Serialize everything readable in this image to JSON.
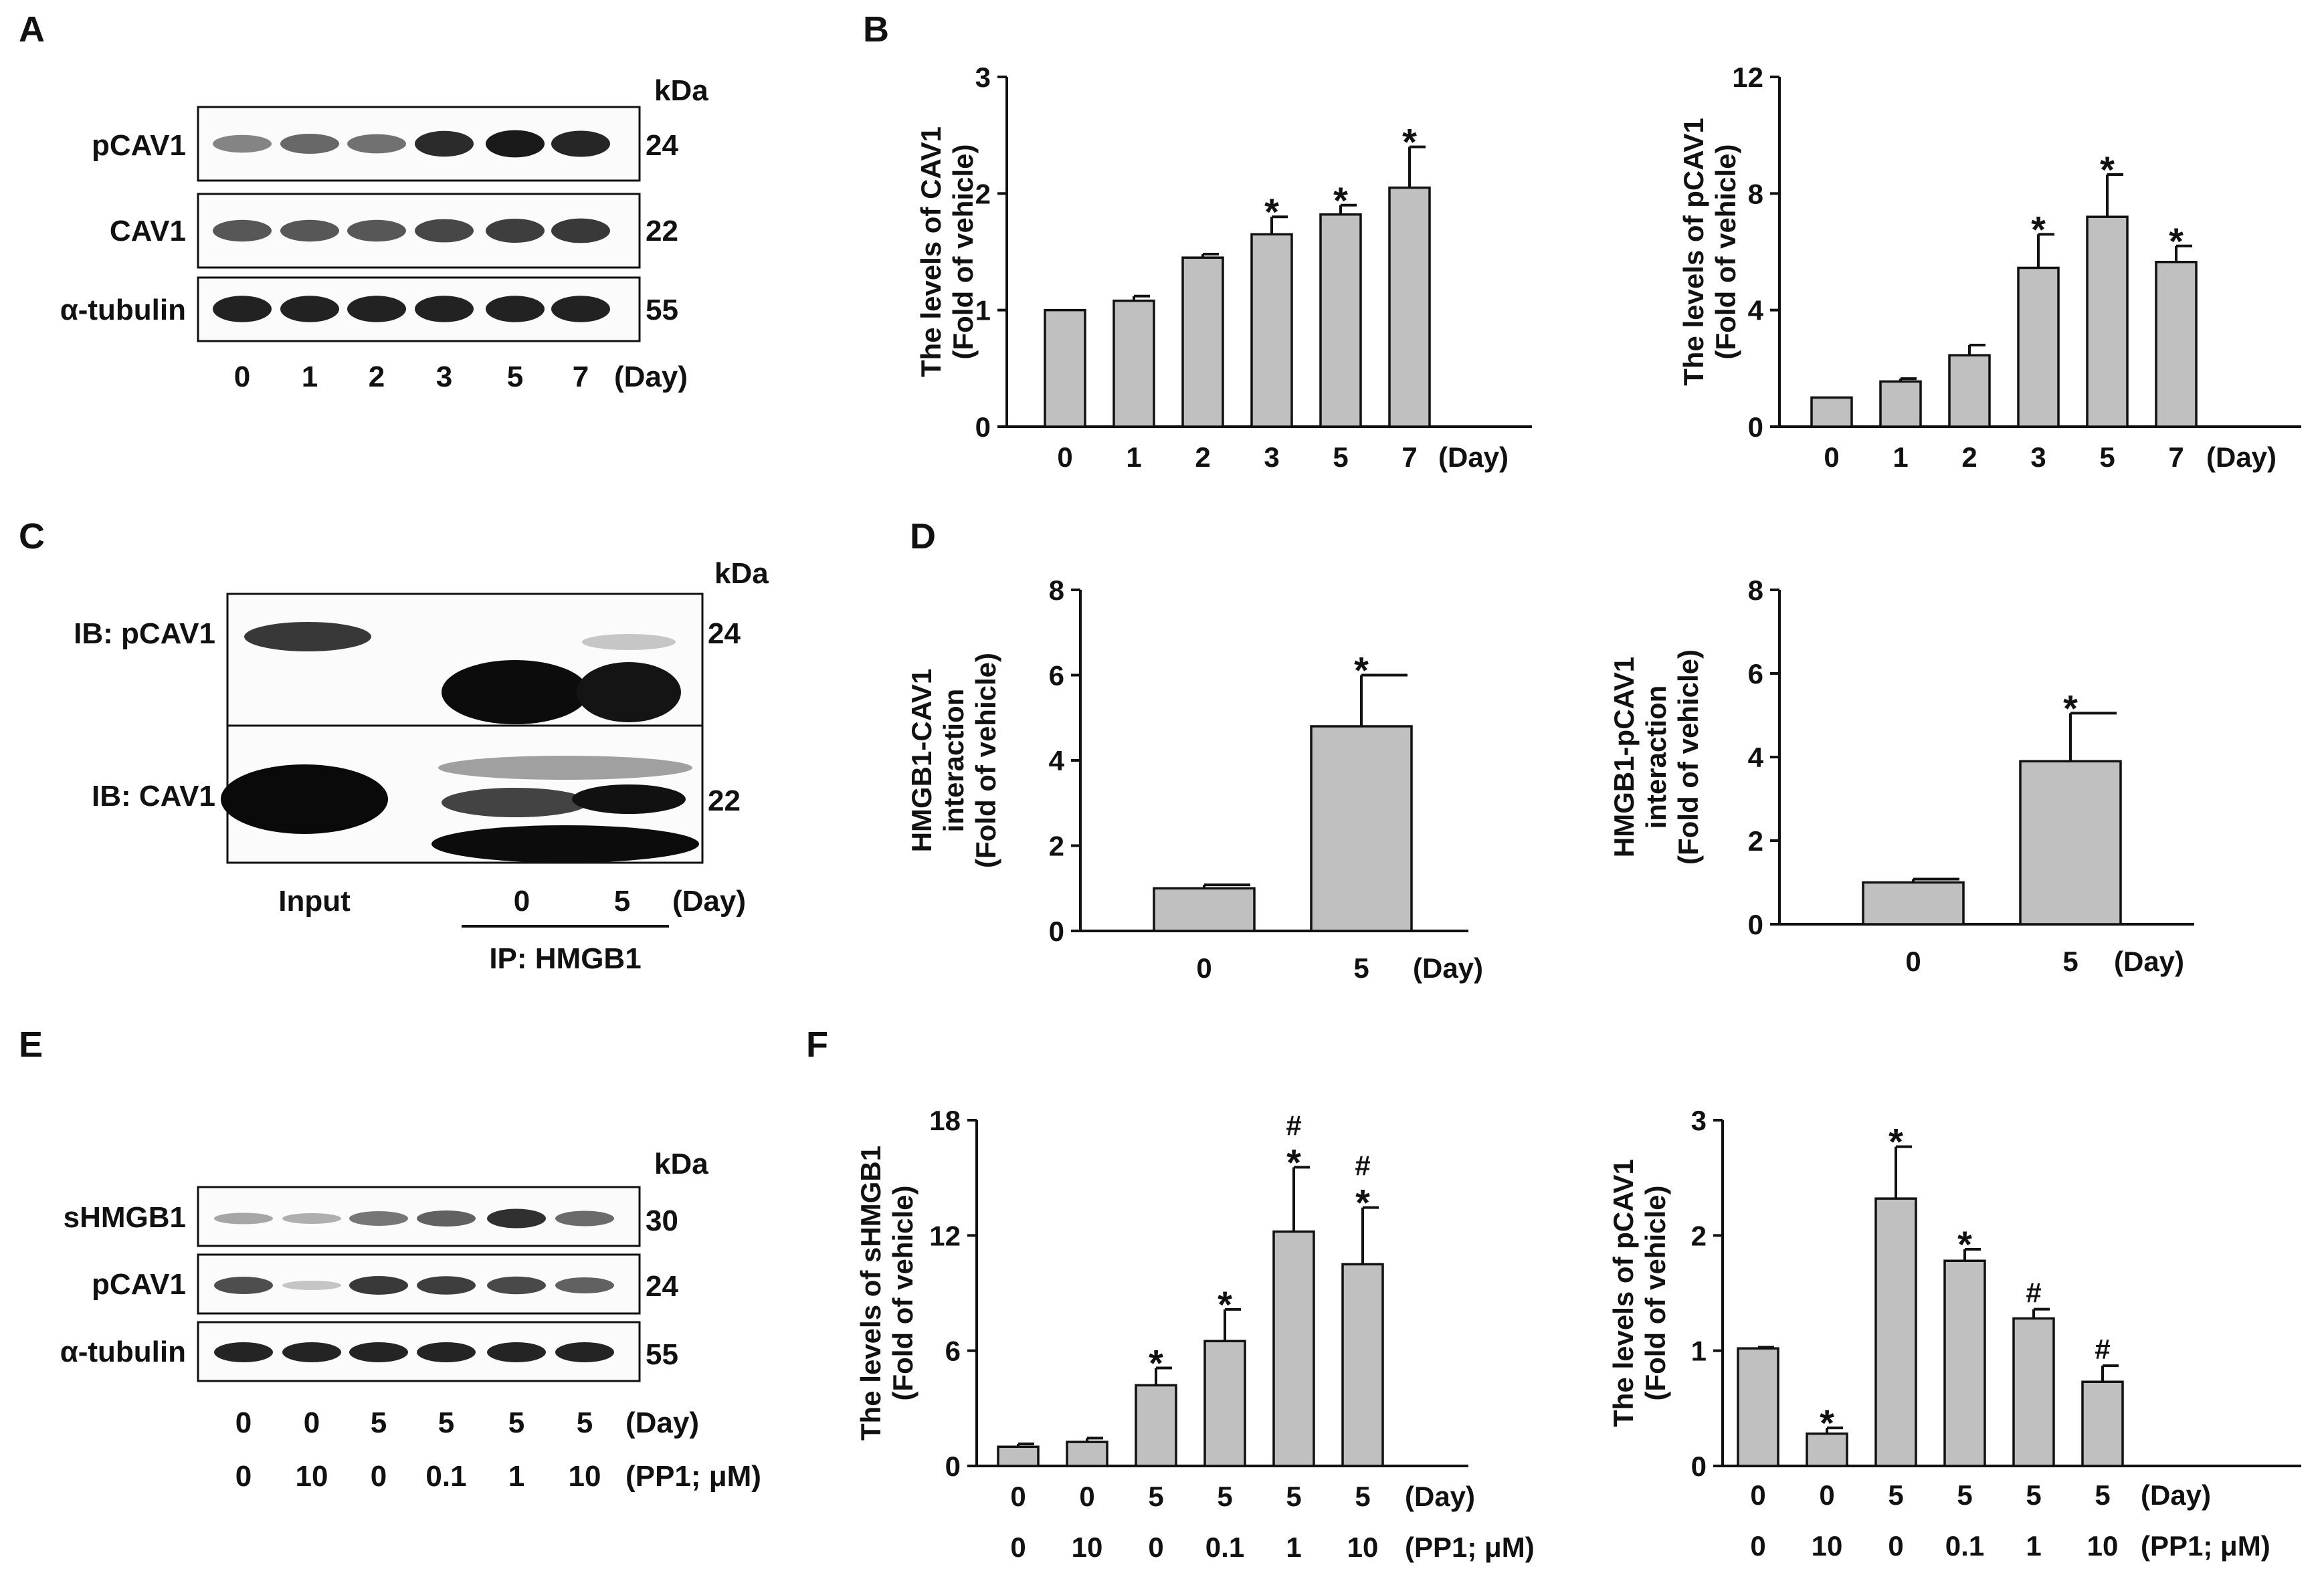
{
  "panels": {
    "A": {
      "letter": "A",
      "kda": "kDa",
      "rows": [
        {
          "name": "pCAV1",
          "kda": "24",
          "intensity": [
            0.35,
            0.5,
            0.45,
            0.85,
            0.95,
            0.88
          ]
        },
        {
          "name": "CAV1",
          "kda": "22",
          "intensity": [
            0.6,
            0.6,
            0.6,
            0.7,
            0.75,
            0.78
          ]
        },
        {
          "name": "α-tubulin",
          "kda": "55",
          "intensity": [
            0.9,
            0.9,
            0.9,
            0.9,
            0.9,
            0.9
          ]
        }
      ],
      "lanes": [
        "0",
        "1",
        "2",
        "3",
        "5",
        "7"
      ],
      "unit": "(Day)"
    },
    "B": {
      "letter": "B"
    },
    "C": {
      "letter": "C",
      "kda": "kDa",
      "rows": [
        {
          "name": "IB: pCAV1",
          "kda": "24"
        },
        {
          "name": "IB: CAV1",
          "kda": "22"
        }
      ],
      "input_label": "Input",
      "lanes": [
        "0",
        "5"
      ],
      "unit": "(Day)",
      "ip_label": "IP: HMGB1"
    },
    "D": {
      "letter": "D"
    },
    "E": {
      "letter": "E",
      "kda": "kDa",
      "rows": [
        {
          "name": "sHMGB1",
          "kda": "30",
          "intensity": [
            0.25,
            0.2,
            0.5,
            0.6,
            0.85,
            0.55
          ]
        },
        {
          "name": "pCAV1",
          "kda": "24",
          "intensity": [
            0.7,
            0.1,
            0.8,
            0.78,
            0.72,
            0.6
          ]
        },
        {
          "name": "α-tubulin",
          "kda": "55",
          "intensity": [
            0.9,
            0.9,
            0.9,
            0.9,
            0.9,
            0.9
          ]
        }
      ],
      "day_row": [
        "0",
        "0",
        "5",
        "5",
        "5",
        "5"
      ],
      "day_unit": "(Day)",
      "pp1_row": [
        "0",
        "10",
        "0",
        "0.1",
        "1",
        "10"
      ],
      "pp1_unit": "(PP1; μM)"
    },
    "F": {
      "letter": "F"
    }
  },
  "chart_data": [
    {
      "id": "B1",
      "type": "bar",
      "categories": [
        "0",
        "1",
        "2",
        "3",
        "5",
        "7"
      ],
      "cat_unit": "(Day)",
      "values": [
        1.0,
        1.08,
        1.45,
        1.65,
        1.82,
        2.05
      ],
      "errors": [
        0,
        0.04,
        0.03,
        0.15,
        0.08,
        0.35
      ],
      "marks": [
        "",
        "",
        "",
        "*",
        "*",
        "*"
      ],
      "ylim": [
        0,
        3
      ],
      "yticks": [
        0,
        1,
        2,
        3
      ],
      "ylabel": [
        "The levels of CAV1",
        "(Fold of vehicle)"
      ]
    },
    {
      "id": "B2",
      "type": "bar",
      "categories": [
        "0",
        "1",
        "2",
        "3",
        "5",
        "7"
      ],
      "cat_unit": "(Day)",
      "values": [
        1.0,
        1.55,
        2.45,
        5.45,
        7.2,
        5.65
      ],
      "errors": [
        0,
        0.1,
        0.35,
        1.15,
        1.45,
        0.55
      ],
      "marks": [
        "",
        "",
        "",
        "*",
        "*",
        "*"
      ],
      "ylim": [
        0,
        12
      ],
      "yticks": [
        0,
        4,
        8,
        12
      ],
      "ylabel": [
        "The levels of pCAV1",
        "(Fold of vehicle)"
      ]
    },
    {
      "id": "D1",
      "type": "bar",
      "categories": [
        "0",
        "5"
      ],
      "cat_unit": "(Day)",
      "values": [
        1.0,
        4.8
      ],
      "errors": [
        0.08,
        1.2
      ],
      "marks": [
        "",
        "*"
      ],
      "ylim": [
        0,
        8
      ],
      "yticks": [
        0,
        2,
        4,
        6,
        8
      ],
      "ylabel": [
        "HMGB1-CAV1",
        "interaction",
        "(Fold of vehicle)"
      ]
    },
    {
      "id": "D2",
      "type": "bar",
      "categories": [
        "0",
        "5"
      ],
      "cat_unit": "(Day)",
      "values": [
        1.0,
        3.9
      ],
      "errors": [
        0.08,
        1.15
      ],
      "marks": [
        "",
        "*"
      ],
      "ylim": [
        0,
        8
      ],
      "yticks": [
        0,
        2,
        4,
        6,
        8
      ],
      "ylabel": [
        "HMGB1-pCAV1",
        "interaction",
        "(Fold of vehicle)"
      ]
    },
    {
      "id": "F1",
      "type": "bar",
      "categories": [
        "0",
        "0",
        "5",
        "5",
        "5",
        "5"
      ],
      "cat_unit": "(Day)",
      "categories2": [
        "0",
        "10",
        "0",
        "0.1",
        "1",
        "10"
      ],
      "cat2_unit": "(PP1; μM)",
      "values": [
        1.0,
        1.25,
        4.2,
        6.5,
        12.2,
        10.5
      ],
      "errors": [
        0.15,
        0.2,
        0.9,
        1.65,
        3.35,
        2.95
      ],
      "marks": [
        "",
        "",
        "*",
        "*",
        "#*",
        "#*"
      ],
      "ylim": [
        0,
        18
      ],
      "yticks": [
        0,
        6,
        12,
        18
      ],
      "ylabel": [
        "The levels of sHMGB1",
        "(Fold of vehicle)"
      ]
    },
    {
      "id": "F2",
      "type": "bar",
      "categories": [
        "0",
        "0",
        "5",
        "5",
        "5",
        "5"
      ],
      "cat_unit": "(Day)",
      "categories2": [
        "0",
        "10",
        "0",
        "0.1",
        "1",
        "10"
      ],
      "cat2_unit": "(PP1; μM)",
      "values": [
        1.02,
        0.28,
        2.32,
        1.78,
        1.28,
        0.73
      ],
      "errors": [
        0.01,
        0.05,
        0.45,
        0.1,
        0.08,
        0.14
      ],
      "marks": [
        "",
        "*",
        "*",
        "*",
        "#",
        "#"
      ],
      "ylim": [
        0,
        3
      ],
      "yticks": [
        0,
        1,
        2,
        3
      ],
      "ylabel": [
        "The levels of pCAV1",
        "(Fold of vehicle)"
      ]
    }
  ]
}
